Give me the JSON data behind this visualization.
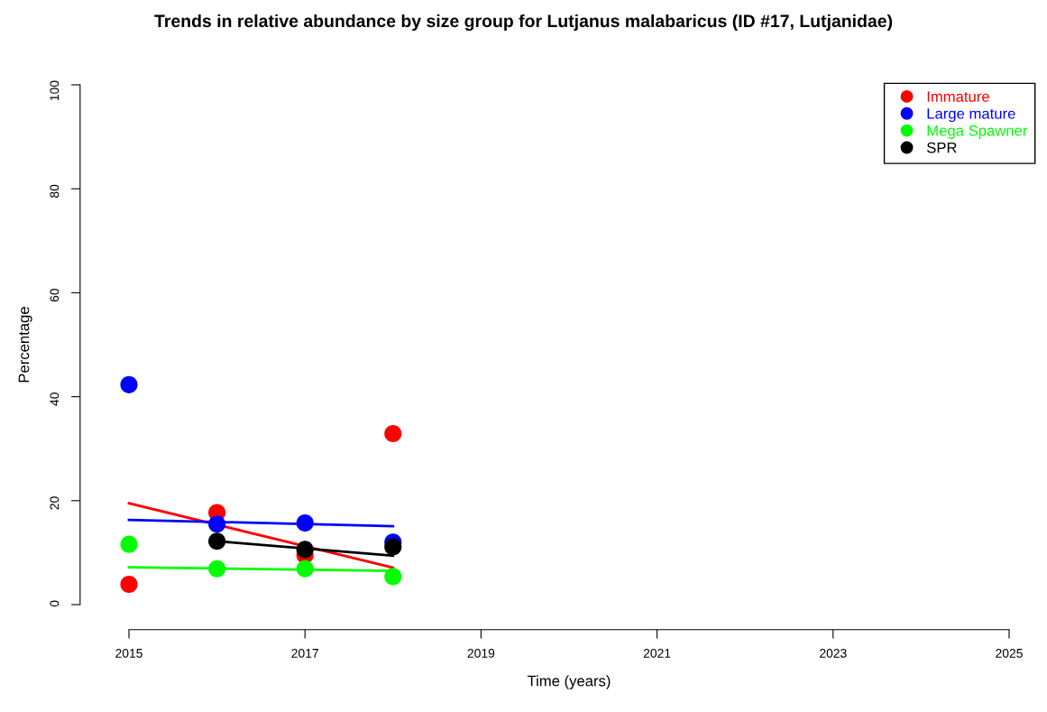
{
  "chart_data": {
    "type": "scatter",
    "title": "Trends in relative abundance by size group for Lutjanus malabaricus (ID #17, Lutjanidae)",
    "xlabel": "Time (years)",
    "ylabel": "Percentage",
    "series": [
      {
        "name": "Immature",
        "color": "#ff0000",
        "x": [
          2015,
          2016,
          2017,
          2018
        ],
        "values": [
          3.9,
          17.7,
          9.5,
          32.9
        ]
      },
      {
        "name": "Large mature",
        "color": "#0000ff",
        "x": [
          2015,
          2016,
          2017,
          2018
        ],
        "values": [
          42.3,
          15.5,
          15.7,
          12.0
        ]
      },
      {
        "name": "Mega Spawner",
        "color": "#00ff00",
        "x": [
          2015,
          2016,
          2017,
          2018
        ],
        "values": [
          11.6,
          6.9,
          6.9,
          5.4
        ]
      },
      {
        "name": "SPR",
        "color": "#000000",
        "x": [
          2016,
          2017,
          2018
        ],
        "values": [
          12.2,
          10.6,
          11.1
        ]
      },
      {
        "type": "line",
        "marker": "none",
        "color": "#ff0000",
        "x": [
          2015,
          2018
        ],
        "values": [
          19.5,
          7.1
        ]
      },
      {
        "type": "line",
        "marker": "none",
        "color": "#0000ff",
        "x": [
          2015,
          2018
        ],
        "values": [
          16.3,
          15.1
        ]
      },
      {
        "type": "line",
        "marker": "none",
        "color": "#00ff00",
        "x": [
          2015,
          2018
        ],
        "values": [
          7.2,
          6.5
        ]
      },
      {
        "type": "line",
        "marker": "none",
        "color": "#000000",
        "x": [
          2016,
          2018
        ],
        "values": [
          12.2,
          9.4
        ]
      }
    ],
    "xlim": [
      2015,
      2025
    ],
    "xticks": [
      2015,
      2017,
      2019,
      2021,
      2023,
      2025
    ],
    "ylim": [
      0,
      100
    ],
    "yticks": [
      0,
      20,
      40,
      60,
      80,
      100
    ],
    "marker": "circle",
    "grid": false,
    "legend": "top right"
  }
}
